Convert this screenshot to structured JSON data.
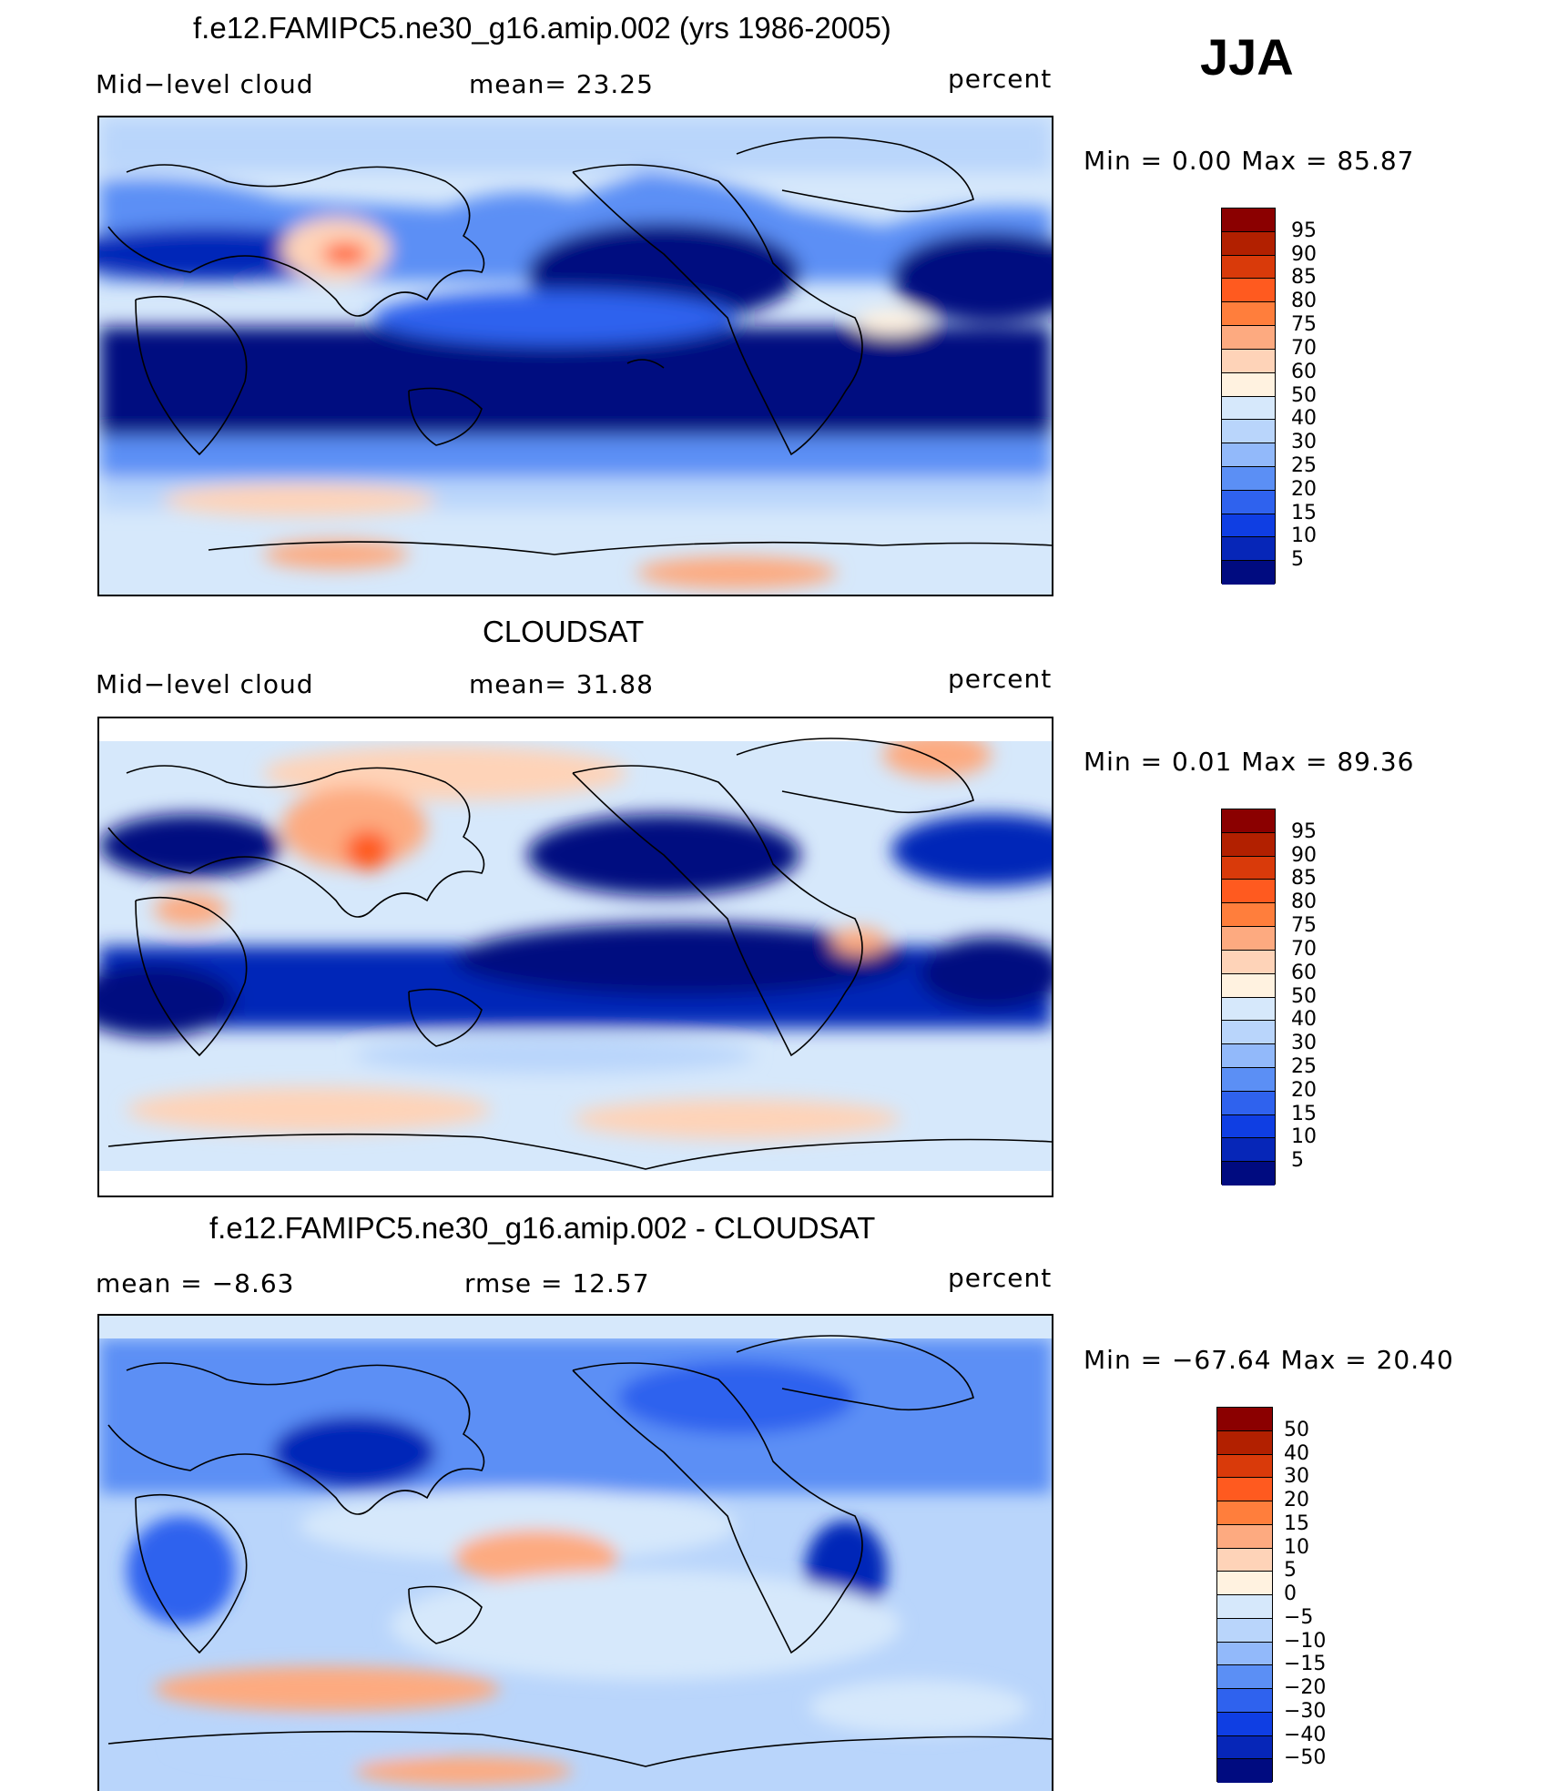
{
  "season": "JJA",
  "colors": {
    "seq_palette": [
      "#8b0000",
      "#b22000",
      "#d93a0a",
      "#ff5a1f",
      "#ff7e3c",
      "#fdaa80",
      "#fed3b8",
      "#fff2e0",
      "#d6e8fb",
      "#b9d5fb",
      "#92b9fa",
      "#5b8ff5",
      "#2f62ee",
      "#0f3ee3",
      "#0626b8",
      "#000b80"
    ],
    "diff_palette": [
      "#8b0000",
      "#b22000",
      "#d93a0a",
      "#ff5a1f",
      "#ff7e3c",
      "#fdaa80",
      "#fed3b8",
      "#fff2e0",
      "#d6e8fb",
      "#b9d5fb",
      "#92b9fa",
      "#5b8ff5",
      "#2f62ee",
      "#0f3ee3",
      "#0626b8",
      "#000b80"
    ]
  },
  "panels": [
    {
      "title": "f.e12.FAMIPC5.ne30_g16.amip.002 (yrs 1986-2005)",
      "left_label": "Mid−level cloud",
      "center_label": "mean=   23.25",
      "units": "percent",
      "minmax": "Min  =     0.00  Max  =    85.87",
      "colorbar_ticks": [
        "95",
        "90",
        "85",
        "80",
        "75",
        "70",
        "60",
        "50",
        "40",
        "30",
        "25",
        "20",
        "15",
        "10",
        "5"
      ]
    },
    {
      "title": "CLOUDSAT",
      "left_label": "Mid−level cloud",
      "center_label": "mean=   31.88",
      "units": "percent",
      "minmax": "Min  =     0.01  Max  =    89.36",
      "colorbar_ticks": [
        "95",
        "90",
        "85",
        "80",
        "75",
        "70",
        "60",
        "50",
        "40",
        "30",
        "25",
        "20",
        "15",
        "10",
        "5"
      ]
    },
    {
      "title": "f.e12.FAMIPC5.ne30_g16.amip.002 - CLOUDSAT",
      "left_label": "mean  =    −8.63",
      "center_label": "rmse  =    12.57",
      "units": "percent",
      "minmax": "Min  = −67.64  Max  =    20.40",
      "colorbar_ticks": [
        "50",
        "40",
        "30",
        "20",
        "15",
        "10",
        "5",
        "0",
        "−5",
        "−10",
        "−15",
        "−20",
        "−30",
        "−40",
        "−50"
      ]
    }
  ]
}
